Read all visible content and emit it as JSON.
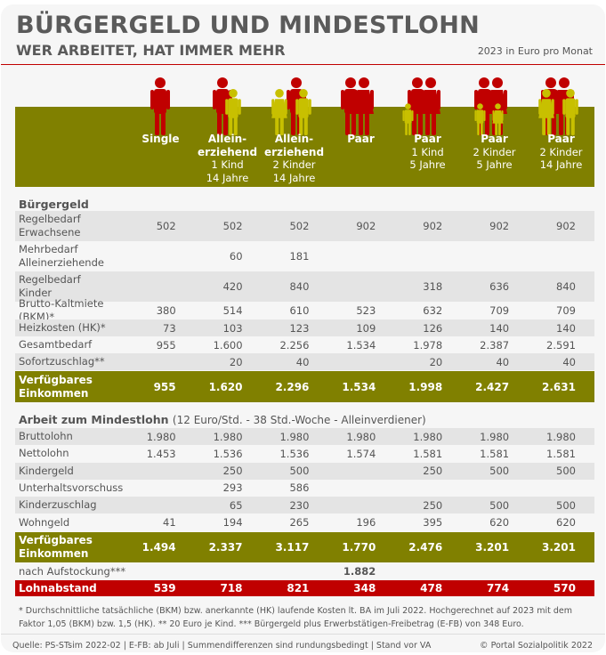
{
  "title": "BÜRGERGELD UND MINDESTLOHN",
  "subtitle": "WER ARBEITET, HAT IMMER MEHR",
  "unit": "2023 in Euro pro Monat",
  "colors": {
    "olive": "#808000",
    "red": "#c00000",
    "child": "#c8c000"
  },
  "columns": [
    {
      "title": "Single",
      "sub1": "",
      "sub2": "",
      "adults": 1,
      "children": []
    },
    {
      "title": "Allein-\nerziehend",
      "sub1": "1 Kind",
      "sub2": "14 Jahre",
      "adults": 1,
      "children": [
        "boy"
      ]
    },
    {
      "title": "Allein-\nerziehend",
      "sub1": "2 Kinder",
      "sub2": "14 Jahre",
      "adults": 1,
      "children": [
        "girl",
        "boy"
      ]
    },
    {
      "title": "Paar",
      "sub1": "",
      "sub2": "",
      "adults": 2,
      "children": []
    },
    {
      "title": "Paar",
      "sub1": "1 Kind",
      "sub2": "5 Jahre",
      "adults": 2,
      "children": [
        "small-boy"
      ]
    },
    {
      "title": "Paar",
      "sub1": "2 Kinder",
      "sub2": "5 Jahre",
      "adults": 2,
      "children": [
        "small-boy",
        "small-girl"
      ]
    },
    {
      "title": "Paar",
      "sub1": "2 Kinder",
      "sub2": "14 Jahre",
      "adults": 2,
      "children": [
        "girl",
        "boy"
      ]
    }
  ],
  "buergergeld": {
    "heading": "Bürgergeld",
    "rows": [
      {
        "label": "Regelbedarf\nErwachsene",
        "values": [
          "502",
          "502",
          "502",
          "902",
          "902",
          "902",
          "902"
        ]
      },
      {
        "label": "Mehrbedarf\nAlleinerziehende",
        "values": [
          "",
          "60",
          "181",
          "",
          "",
          "",
          ""
        ]
      },
      {
        "label": "Regelbedarf\nKinder",
        "values": [
          "",
          "420",
          "840",
          "",
          "318",
          "636",
          "840"
        ]
      },
      {
        "label": "Brutto-Kaltmiete (BKM)*",
        "values": [
          "380",
          "514",
          "610",
          "523",
          "632",
          "709",
          "709"
        ]
      },
      {
        "label": "Heizkosten (HK)*",
        "values": [
          "73",
          "103",
          "123",
          "109",
          "126",
          "140",
          "140"
        ]
      },
      {
        "label": "Gesamtbedarf",
        "values": [
          "955",
          "1.600",
          "2.256",
          "1.534",
          "1.978",
          "2.387",
          "2.591"
        ]
      },
      {
        "label": "Sofortzuschlag**",
        "values": [
          "",
          "20",
          "40",
          "",
          "20",
          "40",
          "40"
        ]
      }
    ],
    "total": {
      "label": "Verfügbares\nEinkommen",
      "values": [
        "955",
        "1.620",
        "2.296",
        "1.534",
        "1.998",
        "2.427",
        "2.631"
      ]
    }
  },
  "mindestlohn": {
    "heading": "Arbeit zum Mindestlohn",
    "heading_note": "(12 Euro/Std. - 38 Std.-Woche - Alleinverdiener)",
    "rows": [
      {
        "label": "Bruttolohn",
        "values": [
          "1.980",
          "1.980",
          "1.980",
          "1.980",
          "1.980",
          "1.980",
          "1.980"
        ]
      },
      {
        "label": "Nettolohn",
        "values": [
          "1.453",
          "1.536",
          "1.536",
          "1.574",
          "1.581",
          "1.581",
          "1.581"
        ]
      },
      {
        "label": "Kindergeld",
        "values": [
          "",
          "250",
          "500",
          "",
          "250",
          "500",
          "500"
        ]
      },
      {
        "label": "Unterhaltsvorschuss",
        "values": [
          "",
          "293",
          "586",
          "",
          "",
          "",
          ""
        ]
      },
      {
        "label": "Kinderzuschlag",
        "values": [
          "",
          "65",
          "230",
          "",
          "250",
          "500",
          "500"
        ]
      },
      {
        "label": "Wohngeld",
        "values": [
          "41",
          "194",
          "265",
          "196",
          "395",
          "620",
          "620"
        ]
      }
    ],
    "total": {
      "label": "Verfügbares\nEinkommen",
      "values": [
        "1.494",
        "2.337",
        "3.117",
        "1.770",
        "2.476",
        "3.201",
        "3.201"
      ]
    },
    "aufstockung": {
      "label": "nach Aufstockung***",
      "values": [
        "",
        "",
        "",
        "1.882",
        "",
        "",
        ""
      ]
    },
    "lohnabstand": {
      "label": "Lohnabstand",
      "values": [
        "539",
        "718",
        "821",
        "348",
        "478",
        "774",
        "570"
      ]
    }
  },
  "footnote": "* Durchschnittliche tatsächliche (BKM) bzw. anerkannte (HK) laufende Kosten lt. BA im Juli 2022. Hochgerechnet auf 2023 mit dem Faktor 1,05 (BKM) bzw. 1,5 (HK). ** 20 Euro je Kind. *** Bürgergeld plus Erwerbstätigen-Freibetrag (E-FB) von 348 Euro.",
  "source": "Quelle: PS-STsim 2022-02 | E-FB: ab Juli | Summendifferenzen sind rundungsbedingt | Stand vor VA",
  "copyright": "© Portal Sozialpolitik 2022"
}
